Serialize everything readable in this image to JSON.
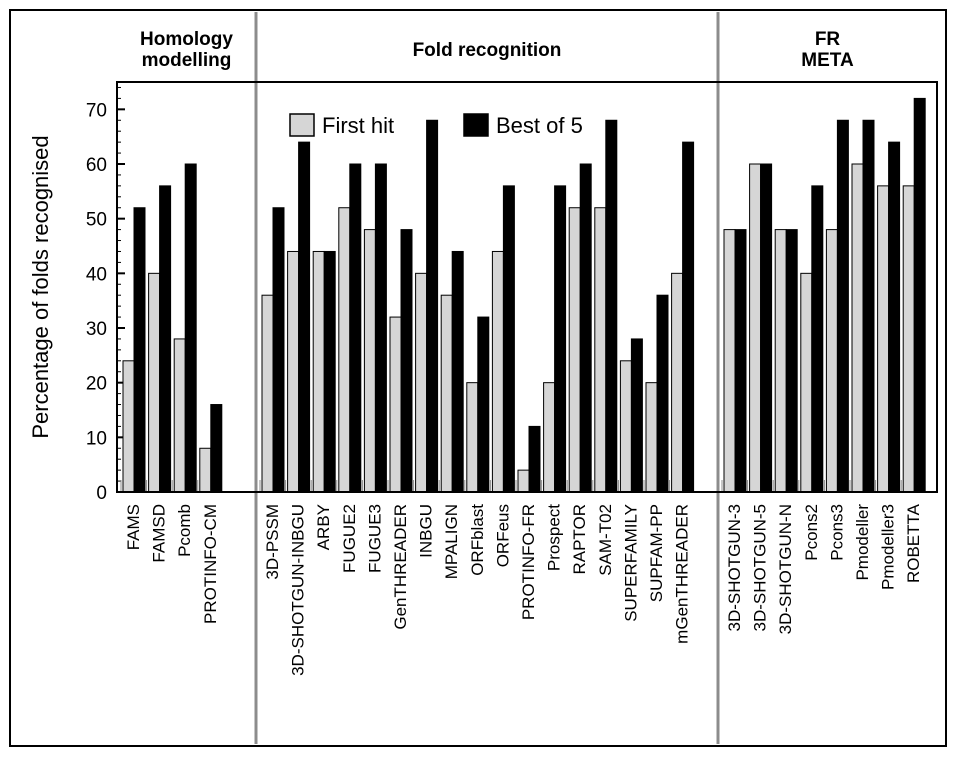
{
  "chart_data": {
    "type": "bar",
    "ylabel": "Percentage of folds recognised",
    "ylim": [
      0,
      75
    ],
    "yticks": [
      0,
      10,
      20,
      30,
      40,
      50,
      60,
      70
    ],
    "legend": {
      "placement": "top-left of Fold recognition panel",
      "entries": [
        "First hit",
        "Best of 5"
      ]
    },
    "colors": {
      "first_hit": "#d6d6d6",
      "best_of_5": "#000000",
      "grid": "#8c8c8c"
    },
    "groups": [
      {
        "title_lines": [
          "Homology",
          "modelling"
        ],
        "categories": [
          "FAMS",
          "FAMSD",
          "Pcomb",
          "PROTINFO-CM"
        ]
      },
      {
        "title_lines": [
          "Fold recognition"
        ],
        "categories": [
          "3D-PSSM",
          "3D-SHOTGUN-INBGU",
          "ARBY",
          "FUGUE2",
          "FUGUE3",
          "GenTHREADER",
          "INBGU",
          "MPALIGN",
          "ORFblast",
          "ORFeus",
          "PROTINFO-FR",
          "Prospect",
          "RAPTOR",
          "SAM-T02",
          "SUPERFAMILY",
          "SUPFAM-PP",
          "mGenTHREADER"
        ]
      },
      {
        "title_lines": [
          "FR",
          "META"
        ],
        "categories": [
          "3D-SHOTGUN-3",
          "3D-SHOTGUN-5",
          "3D-SHOTGUN-N",
          "Pcons2",
          "Pcons3",
          "Pmodeller",
          "Pmodeller3",
          "ROBETTA"
        ]
      }
    ],
    "categories": [
      "FAMS",
      "FAMSD",
      "Pcomb",
      "PROTINFO-CM",
      "3D-PSSM",
      "3D-SHOTGUN-INBGU",
      "ARBY",
      "FUGUE2",
      "FUGUE3",
      "GenTHREADER",
      "INBGU",
      "MPALIGN",
      "ORFblast",
      "ORFeus",
      "PROTINFO-FR",
      "Prospect",
      "RAPTOR",
      "SAM-T02",
      "SUPERFAMILY",
      "SUPFAM-PP",
      "mGenTHREADER",
      "3D-SHOTGUN-3",
      "3D-SHOTGUN-5",
      "3D-SHOTGUN-N",
      "Pcons2",
      "Pcons3",
      "Pmodeller",
      "Pmodeller3",
      "ROBETTA"
    ],
    "series": [
      {
        "name": "First hit",
        "values": [
          24,
          40,
          28,
          8,
          36,
          44,
          44,
          52,
          48,
          32,
          40,
          36,
          20,
          44,
          4,
          20,
          52,
          52,
          24,
          20,
          40,
          48,
          60,
          48,
          40,
          48,
          60,
          56,
          56
        ]
      },
      {
        "name": "Best of 5",
        "values": [
          52,
          56,
          60,
          16,
          52,
          64,
          44,
          60,
          60,
          48,
          68,
          44,
          32,
          56,
          12,
          56,
          60,
          68,
          28,
          36,
          64,
          48,
          60,
          48,
          56,
          68,
          68,
          64,
          72
        ]
      }
    ]
  }
}
